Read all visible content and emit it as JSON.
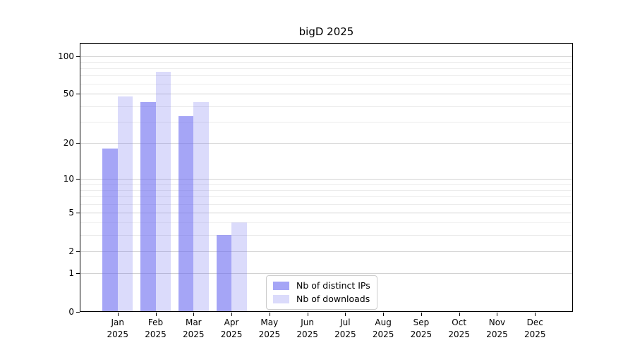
{
  "title": "bigD 2025",
  "chart_data": {
    "type": "bar",
    "title": "bigD 2025",
    "categories": [
      "Jan",
      "Feb",
      "Mar",
      "Apr",
      "May",
      "Jun",
      "Jul",
      "Aug",
      "Sep",
      "Oct",
      "Nov",
      "Dec"
    ],
    "category_year_line": "2025",
    "series": [
      {
        "name": "Nb of distinct IPs",
        "color": "rgba(105,105,240,0.60)",
        "values": [
          18,
          43,
          33,
          3,
          0,
          0,
          0,
          0,
          0,
          0,
          0,
          0
        ]
      },
      {
        "name": "Nb of downloads",
        "color": "rgba(105,105,240,0.24)",
        "values": [
          48,
          75,
          43,
          4,
          0,
          0,
          0,
          0,
          0,
          0,
          0,
          0
        ]
      }
    ],
    "xlabel": "",
    "ylabel": "",
    "y_scale": "log1p",
    "ylim": [
      0,
      127
    ],
    "y_ticks": [
      0,
      1,
      2,
      5,
      10,
      20,
      50,
      100
    ],
    "y_minor_gridlines": [
      3,
      4,
      6,
      7,
      8,
      9,
      30,
      40,
      60,
      70,
      80,
      90
    ],
    "grid": "horizontal",
    "legend_position": "lower center"
  },
  "colors": {
    "background": "#ffffff",
    "bar_dark": "rgba(105,105,240,0.60)",
    "bar_light": "rgba(105,105,240,0.24)",
    "major_grid": "#d2d2d2",
    "minor_grid": "#ececec",
    "spine": "#000000",
    "legend_border": "#cccccc",
    "text": "#000000"
  }
}
